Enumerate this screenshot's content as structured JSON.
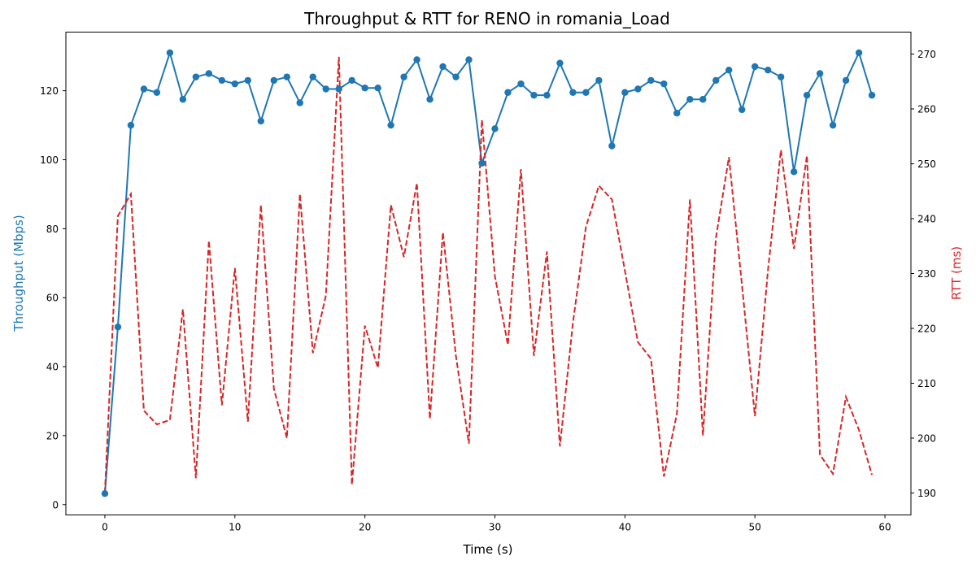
{
  "chart_data": {
    "type": "line",
    "title": "Throughput & RTT for RENO in romania_Load",
    "xlabel": "Time (s)",
    "ylabel_left": "Throughput (Mbps)",
    "ylabel_right": "RTT (ms)",
    "xlim": [
      -3,
      62
    ],
    "ylim_left": [
      -3,
      137
    ],
    "ylim_right": [
      186,
      274
    ],
    "xticks": [
      0,
      10,
      20,
      30,
      40,
      50,
      60
    ],
    "yticks_left": [
      0,
      20,
      40,
      60,
      80,
      100,
      120
    ],
    "yticks_right": [
      190,
      200,
      210,
      220,
      230,
      240,
      250,
      260,
      270
    ],
    "grid": false,
    "colors": {
      "throughput": "#1f77b4",
      "rtt": "#d62728"
    },
    "x": [
      0,
      1,
      2,
      3,
      4,
      5,
      6,
      7,
      8,
      9,
      10,
      11,
      12,
      13,
      14,
      15,
      16,
      17,
      18,
      19,
      20,
      21,
      22,
      23,
      24,
      25,
      26,
      27,
      28,
      29,
      30,
      31,
      32,
      33,
      34,
      35,
      36,
      37,
      38,
      39,
      40,
      41,
      42,
      43,
      44,
      45,
      46,
      47,
      48,
      49,
      50,
      51,
      52,
      53,
      54,
      55,
      56,
      57,
      58,
      59
    ],
    "series": [
      {
        "axis": "left",
        "style": "solid-marker",
        "values": [
          3.2,
          51.5,
          110,
          120.5,
          119.5,
          131,
          117.5,
          124,
          125,
          123,
          122,
          123,
          111.2,
          123,
          124,
          116.5,
          124,
          120.5,
          120.5,
          123,
          120.8,
          120.8,
          110,
          124,
          129,
          117.5,
          127,
          124,
          129,
          99,
          109,
          119.5,
          122,
          118.7,
          118.7,
          128,
          119.5,
          119.5,
          123,
          104,
          119.5,
          120.5,
          123,
          122,
          113.5,
          117.5,
          117.5,
          123,
          126,
          114.5,
          127,
          126,
          124,
          96.5,
          118.7,
          125,
          110,
          123,
          131,
          118.7
        ]
      },
      {
        "axis": "right",
        "style": "dashed",
        "values": [
          190,
          240.5,
          244.5,
          205,
          202.5,
          203.3,
          223.5,
          192.7,
          236,
          206,
          231,
          203,
          242.5,
          209,
          200,
          244.5,
          215.5,
          226,
          269.5,
          191.5,
          220.5,
          212.8,
          242.5,
          233,
          246.5,
          203.5,
          237.5,
          215,
          199,
          258,
          229.5,
          217,
          249,
          215,
          234,
          198.5,
          221,
          238.5,
          246,
          243.5,
          230.5,
          217.5,
          214.5,
          193,
          204.5,
          243.5,
          200.5,
          236.5,
          251.2,
          228,
          204,
          230.5,
          252.5,
          234.5,
          251.5,
          197,
          193.5,
          207.5,
          201.5,
          193.3
        ]
      }
    ]
  }
}
